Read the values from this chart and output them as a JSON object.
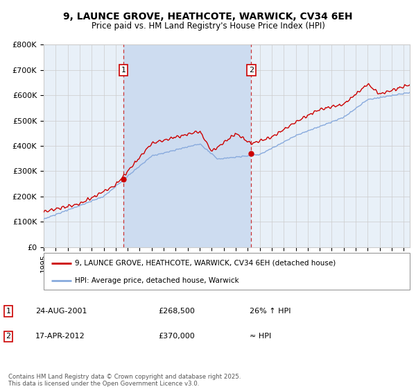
{
  "title": "9, LAUNCE GROVE, HEATHCOTE, WARWICK, CV34 6EH",
  "subtitle": "Price paid vs. HM Land Registry's House Price Index (HPI)",
  "legend_line1": "9, LAUNCE GROVE, HEATHCOTE, WARWICK, CV34 6EH (detached house)",
  "legend_line2": "HPI: Average price, detached house, Warwick",
  "annotation1_date": "24-AUG-2001",
  "annotation1_price": "£268,500",
  "annotation1_note": "26% ↑ HPI",
  "annotation2_date": "17-APR-2012",
  "annotation2_price": "£370,000",
  "annotation2_note": "≈ HPI",
  "footer": "Contains HM Land Registry data © Crown copyright and database right 2025.\nThis data is licensed under the Open Government Licence v3.0.",
  "ylim": [
    0,
    800000
  ],
  "yticks": [
    0,
    100000,
    200000,
    300000,
    400000,
    500000,
    600000,
    700000,
    800000
  ],
  "ytick_labels": [
    "£0",
    "£100K",
    "£200K",
    "£300K",
    "£400K",
    "£500K",
    "£600K",
    "£700K",
    "£800K"
  ],
  "xmin": 1995,
  "xmax": 2025.5,
  "sale1_x": 2001.65,
  "sale1_y": 268500,
  "sale2_x": 2012.29,
  "sale2_y": 370000,
  "bg_color_full": "#e8f0f8",
  "bg_color_between": "#cddcf0",
  "line_color_house": "#cc0000",
  "line_color_hpi": "#88aadd",
  "grid_color": "#cccccc",
  "annotation_box_color": "#cc0000",
  "fig_bg": "#ffffff"
}
